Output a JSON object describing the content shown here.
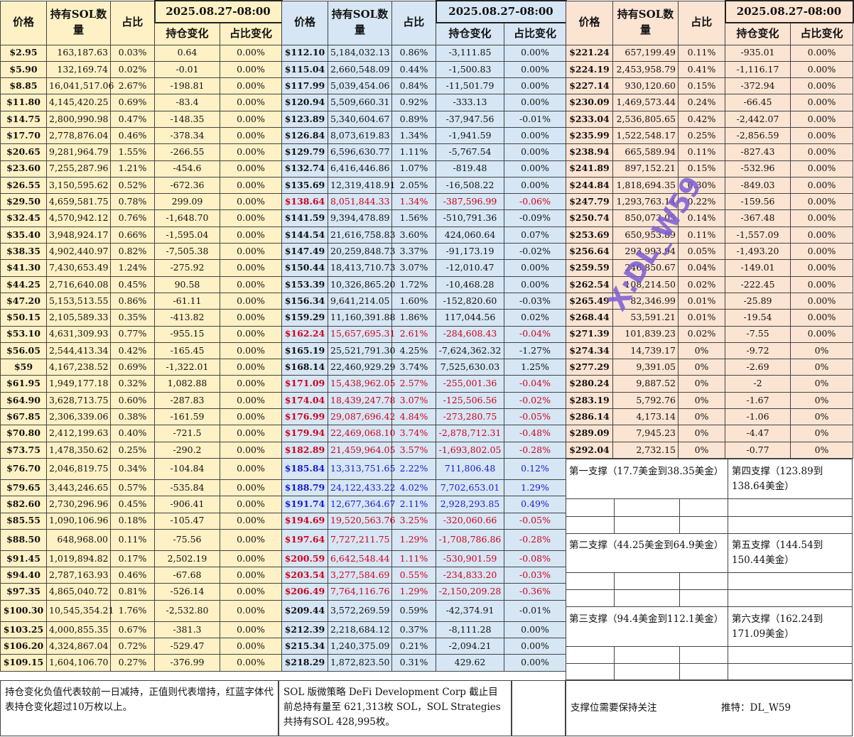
{
  "headers": {
    "price": "价格",
    "holding": "持有SOL数量",
    "pct": "占比",
    "date": "2025.08.27-08:00",
    "change": "持仓变化",
    "pct_change": "占比变化"
  },
  "col1": [
    [
      "$2.95",
      "163,187.63",
      "0.03%",
      "0.64",
      "0.00%"
    ],
    [
      "$5.90",
      "132,169.74",
      "0.02%",
      "-0.01",
      "0.00%"
    ],
    [
      "$8.85",
      "16,041,517.06",
      "2.67%",
      "-198.81",
      "0.00%"
    ],
    [
      "$11.80",
      "4,145,420.25",
      "0.69%",
      "-83.4",
      "0.00%"
    ],
    [
      "$14.75",
      "2,800,990.98",
      "0.47%",
      "-148.35",
      "0.00%"
    ],
    [
      "$17.70",
      "2,778,876.04",
      "0.46%",
      "-378.34",
      "0.00%"
    ],
    [
      "$20.65",
      "9,281,964.79",
      "1.55%",
      "-266.55",
      "0.00%"
    ],
    [
      "$23.60",
      "7,255,287.96",
      "1.21%",
      "-454.6",
      "0.00%"
    ],
    [
      "$26.55",
      "3,150,595.62",
      "0.52%",
      "-672.36",
      "0.00%"
    ],
    [
      "$29.50",
      "4,659,581.75",
      "0.78%",
      "299.09",
      "0.00%"
    ],
    [
      "$32.45",
      "4,570,942.12",
      "0.76%",
      "-1,648.70",
      "0.00%"
    ],
    [
      "$35.40",
      "3,948,924.17",
      "0.66%",
      "-1,595.04",
      "0.00%"
    ],
    [
      "$38.35",
      "4,902,440.97",
      "0.82%",
      "-7,505.38",
      "0.00%"
    ],
    [
      "$41.30",
      "7,430,653.49",
      "1.24%",
      "-275.92",
      "0.00%"
    ],
    [
      "$44.25",
      "2,716,640.08",
      "0.45%",
      "90.58",
      "0.00%"
    ],
    [
      "$47.20",
      "5,153,513.55",
      "0.86%",
      "-61.11",
      "0.00%"
    ],
    [
      "$50.15",
      "2,105,589.33",
      "0.35%",
      "-413.82",
      "0.00%"
    ],
    [
      "$53.10",
      "4,631,309.93",
      "0.77%",
      "-955.15",
      "0.00%"
    ],
    [
      "$56.05",
      "2,544,413.34",
      "0.42%",
      "-165.45",
      "0.00%"
    ],
    [
      "$59",
      "4,167,238.52",
      "0.69%",
      "-1,322.01",
      "0.00%"
    ],
    [
      "$61.95",
      "1,949,177.18",
      "0.32%",
      "1,082.88",
      "0.00%"
    ],
    [
      "$64.90",
      "3,628,713.75",
      "0.60%",
      "-287.83",
      "0.00%"
    ],
    [
      "$67.85",
      "2,306,339.06",
      "0.38%",
      "-161.59",
      "0.00%"
    ],
    [
      "$70.80",
      "2,412,199.63",
      "0.40%",
      "-721.5",
      "0.00%"
    ],
    [
      "$73.75",
      "1,478,350.62",
      "0.25%",
      "-290.2",
      "0.00%"
    ],
    [
      "$76.70",
      "2,046,819.75",
      "0.34%",
      "-104.84",
      "0.00%"
    ],
    [
      "$79.65",
      "3,443,246.65",
      "0.57%",
      "-535.84",
      "0.00%"
    ],
    [
      "$82.60",
      "2,730,296.96",
      "0.45%",
      "-906.41",
      "0.00%"
    ],
    [
      "$85.55",
      "1,090,106.96",
      "0.18%",
      "-105.47",
      "0.00%"
    ],
    [
      "$88.50",
      "648,968.00",
      "0.11%",
      "-75.56",
      "0.00%"
    ],
    [
      "$91.45",
      "1,019,894.82",
      "0.17%",
      "2,502.19",
      "0.00%"
    ],
    [
      "$94.40",
      "2,787,163.93",
      "0.46%",
      "-67.68",
      "0.00%"
    ],
    [
      "$97.35",
      "4,865,040.72",
      "0.81%",
      "-526.14",
      "0.00%"
    ],
    [
      "$100.30",
      "10,545,354.21",
      "1.76%",
      "-2,532.80",
      "0.00%"
    ],
    [
      "$103.25",
      "4,000,855.35",
      "0.67%",
      "-381.3",
      "0.00%"
    ],
    [
      "$106.20",
      "4,324,867.04",
      "0.72%",
      "-529.47",
      "0.00%"
    ],
    [
      "$109.15",
      "1,604,106.70",
      "0.27%",
      "-376.99",
      "0.00%"
    ]
  ],
  "col2": [
    [
      "$112.10",
      "5,184,032.13",
      "0.86%",
      "-3,111.85",
      "0.00%",
      ""
    ],
    [
      "$115.04",
      "2,660,548.09",
      "0.44%",
      "-1,500.83",
      "0.00%",
      ""
    ],
    [
      "$117.99",
      "5,039,454.06",
      "0.84%",
      "-11,501.79",
      "0.00%",
      ""
    ],
    [
      "$120.94",
      "5,509,660.31",
      "0.92%",
      "-333.13",
      "0.00%",
      ""
    ],
    [
      "$123.89",
      "5,340,604.67",
      "0.89%",
      "-37,947.56",
      "-0.01%",
      ""
    ],
    [
      "$126.84",
      "8,073,619.83",
      "1.34%",
      "-1,941.59",
      "0.00%",
      ""
    ],
    [
      "$129.79",
      "6,596,630.77",
      "1.11%",
      "-5,767.54",
      "0.00%",
      ""
    ],
    [
      "$132.74",
      "6,416,446.86",
      "1.07%",
      "-819.48",
      "0.00%",
      ""
    ],
    [
      "$135.69",
      "12,319,418.91",
      "2.05%",
      "-16,508.22",
      "0.00%",
      ""
    ],
    [
      "$138.64",
      "8,051,844.33",
      "1.34%",
      "-387,596.99",
      "-0.06%",
      "red"
    ],
    [
      "$141.59",
      "9,394,478.89",
      "1.56%",
      "-510,791.36",
      "-0.09%",
      ""
    ],
    [
      "$144.54",
      "21,616,758.83",
      "3.60%",
      "424,060.64",
      "0.07%",
      ""
    ],
    [
      "$147.49",
      "20,259,848.73",
      "3.37%",
      "-91,173.19",
      "-0.02%",
      ""
    ],
    [
      "$150.44",
      "18,413,710.73",
      "3.07%",
      "-12,010.47",
      "0.00%",
      ""
    ],
    [
      "$153.39",
      "10,326,865.20",
      "1.72%",
      "-10,468.28",
      "0.00%",
      ""
    ],
    [
      "$156.34",
      "9,641,214.05",
      "1.60%",
      "-152,820.60",
      "-0.03%",
      ""
    ],
    [
      "$159.29",
      "11,160,391.88",
      "1.86%",
      "117,044.56",
      "0.02%",
      ""
    ],
    [
      "$162.24",
      "15,657,695.31",
      "2.61%",
      "-284,608.43",
      "-0.04%",
      "red"
    ],
    [
      "$165.19",
      "25,521,791.30",
      "4.25%",
      "-7,624,362.32",
      "-1.27%",
      ""
    ],
    [
      "$168.14",
      "22,460,929.29",
      "3.74%",
      "7,525,630.03",
      "1.25%",
      ""
    ],
    [
      "$171.09",
      "15,438,962.05",
      "2.57%",
      "-255,001.36",
      "-0.04%",
      "red"
    ],
    [
      "$174.04",
      "18,439,247.78",
      "3.07%",
      "-125,506.56",
      "-0.02%",
      "red"
    ],
    [
      "$176.99",
      "29,087,696.42",
      "4.84%",
      "-273,280.75",
      "-0.05%",
      "red"
    ],
    [
      "$179.94",
      "22,469,068.10",
      "3.74%",
      "-2,878,712.31",
      "-0.48%",
      "red"
    ],
    [
      "$182.89",
      "21,459,964.05",
      "3.57%",
      "-1,693,802.05",
      "-0.28%",
      "red"
    ],
    [
      "$185.84",
      "13,313,751.65",
      "2.22%",
      "711,806.48",
      "0.12%",
      "blue"
    ],
    [
      "$188.79",
      "24,122,433.22",
      "4.02%",
      "7,702,653.01",
      "1.29%",
      "blue"
    ],
    [
      "$191.74",
      "12,677,364.67",
      "2.11%",
      "2,928,293.85",
      "0.49%",
      "blue"
    ],
    [
      "$194.69",
      "19,520,563.76",
      "3.25%",
      "-320,060.66",
      "-0.05%",
      "red"
    ],
    [
      "$197.64",
      "7,727,211.75",
      "1.29%",
      "-1,708,786.86",
      "-0.28%",
      "red"
    ],
    [
      "$200.59",
      "6,642,548.44",
      "1.11%",
      "-530,901.59",
      "-0.08%",
      "red"
    ],
    [
      "$203.54",
      "3,277,584.69",
      "0.55%",
      "-234,833.20",
      "-0.03%",
      "red"
    ],
    [
      "$206.49",
      "7,764,116.76",
      "1.29%",
      "-2,150,209.28",
      "-0.36%",
      "red"
    ],
    [
      "$209.44",
      "3,572,269.59",
      "0.59%",
      "-42,374.91",
      "-0.01%",
      ""
    ],
    [
      "$212.39",
      "2,218,684.12",
      "0.37%",
      "-8,111.28",
      "0.00%",
      ""
    ],
    [
      "$215.34",
      "1,240,375.09",
      "0.21%",
      "-2,094.21",
      "0.00%",
      ""
    ],
    [
      "$218.29",
      "1,872,823.50",
      "0.31%",
      "429.62",
      "0.00%",
      ""
    ]
  ],
  "col3": [
    [
      "$221.24",
      "657,199.49",
      "0.11%",
      "-935.01",
      "0.00%"
    ],
    [
      "$224.19",
      "2,453,958.79",
      "0.41%",
      "-1,116.17",
      "0.00%"
    ],
    [
      "$227.14",
      "930,120.60",
      "0.15%",
      "-372.94",
      "0.00%"
    ],
    [
      "$230.09",
      "1,469,573.44",
      "0.24%",
      "-66.45",
      "0.00%"
    ],
    [
      "$233.04",
      "2,536,805.65",
      "0.42%",
      "-2,442.07",
      "0.00%"
    ],
    [
      "$235.99",
      "1,522,548.17",
      "0.25%",
      "-2,856.59",
      "0.00%"
    ],
    [
      "$238.94",
      "665,589.94",
      "0.11%",
      "-827.43",
      "0.00%"
    ],
    [
      "$241.89",
      "897,152.21",
      "0.15%",
      "-532.96",
      "0.00%"
    ],
    [
      "$244.84",
      "1,818,694.35",
      "0.30%",
      "-849.03",
      "0.00%"
    ],
    [
      "$247.79",
      "1,293,763.14",
      "0.22%",
      "-159.56",
      "0.00%"
    ],
    [
      "$250.74",
      "850,073.05",
      "0.14%",
      "-367.48",
      "0.00%"
    ],
    [
      "$253.69",
      "650,953.89",
      "0.11%",
      "-1,557.09",
      "0.00%"
    ],
    [
      "$256.64",
      "293,993.94",
      "0.05%",
      "-1,493.20",
      "0.00%"
    ],
    [
      "$259.59",
      "246,850.67",
      "0.04%",
      "-149.01",
      "0.00%"
    ],
    [
      "$262.54",
      "108,214.50",
      "0.02%",
      "-222.45",
      "0.00%"
    ],
    [
      "$265.49",
      "82,346.99",
      "0.01%",
      "-25.89",
      "0.00%"
    ],
    [
      "$268.44",
      "53,591.21",
      "0.01%",
      "-19.54",
      "0.00%"
    ],
    [
      "$271.39",
      "101,839.23",
      "0.02%",
      "-7.55",
      "0.00%"
    ],
    [
      "$274.34",
      "14,739.17",
      "0%",
      "-9.72",
      "0%"
    ],
    [
      "$277.29",
      "9,391.05",
      "0%",
      "-2.69",
      "0%"
    ],
    [
      "$280.24",
      "9,887.52",
      "0%",
      "-2",
      "0%"
    ],
    [
      "$283.19",
      "5,792.76",
      "0%",
      "-1.67",
      "0%"
    ],
    [
      "$286.14",
      "4,173.14",
      "0%",
      "-1.06",
      "0%"
    ],
    [
      "$289.09",
      "7,945.23",
      "0%",
      "-4.47",
      "0%"
    ],
    [
      "$292.04",
      "2,732.15",
      "0%",
      "-0.77",
      "0%"
    ]
  ],
  "supports": {
    "s1": "第一支撑（17.7美金到38.35美金）",
    "s2": "第二支撑（44.25美金到64.9美金）",
    "s3": "第三支撑（94.4美金到112.1美金）",
    "s4": "第四支撑（123.89到138.64美金）",
    "s5": "第五支撑（144.54到150.44美金）",
    "s6": "第六支撑（162.24到171.09美金）"
  },
  "notes": {
    "left": "持仓变化负值代表较前一日减持，正值则代表增持，红蓝字体代表持仓变化超过10万枚以上。",
    "middle": "SOL 版微策略 DeFi Development Corp 截止目前总持有量至 621,313枚 SOL，SOL Strategies共持有SOL 428,995枚。",
    "right": "支撑位需要保持关注",
    "author": "推特：DL_W59"
  },
  "watermark": "X:DL_W59"
}
